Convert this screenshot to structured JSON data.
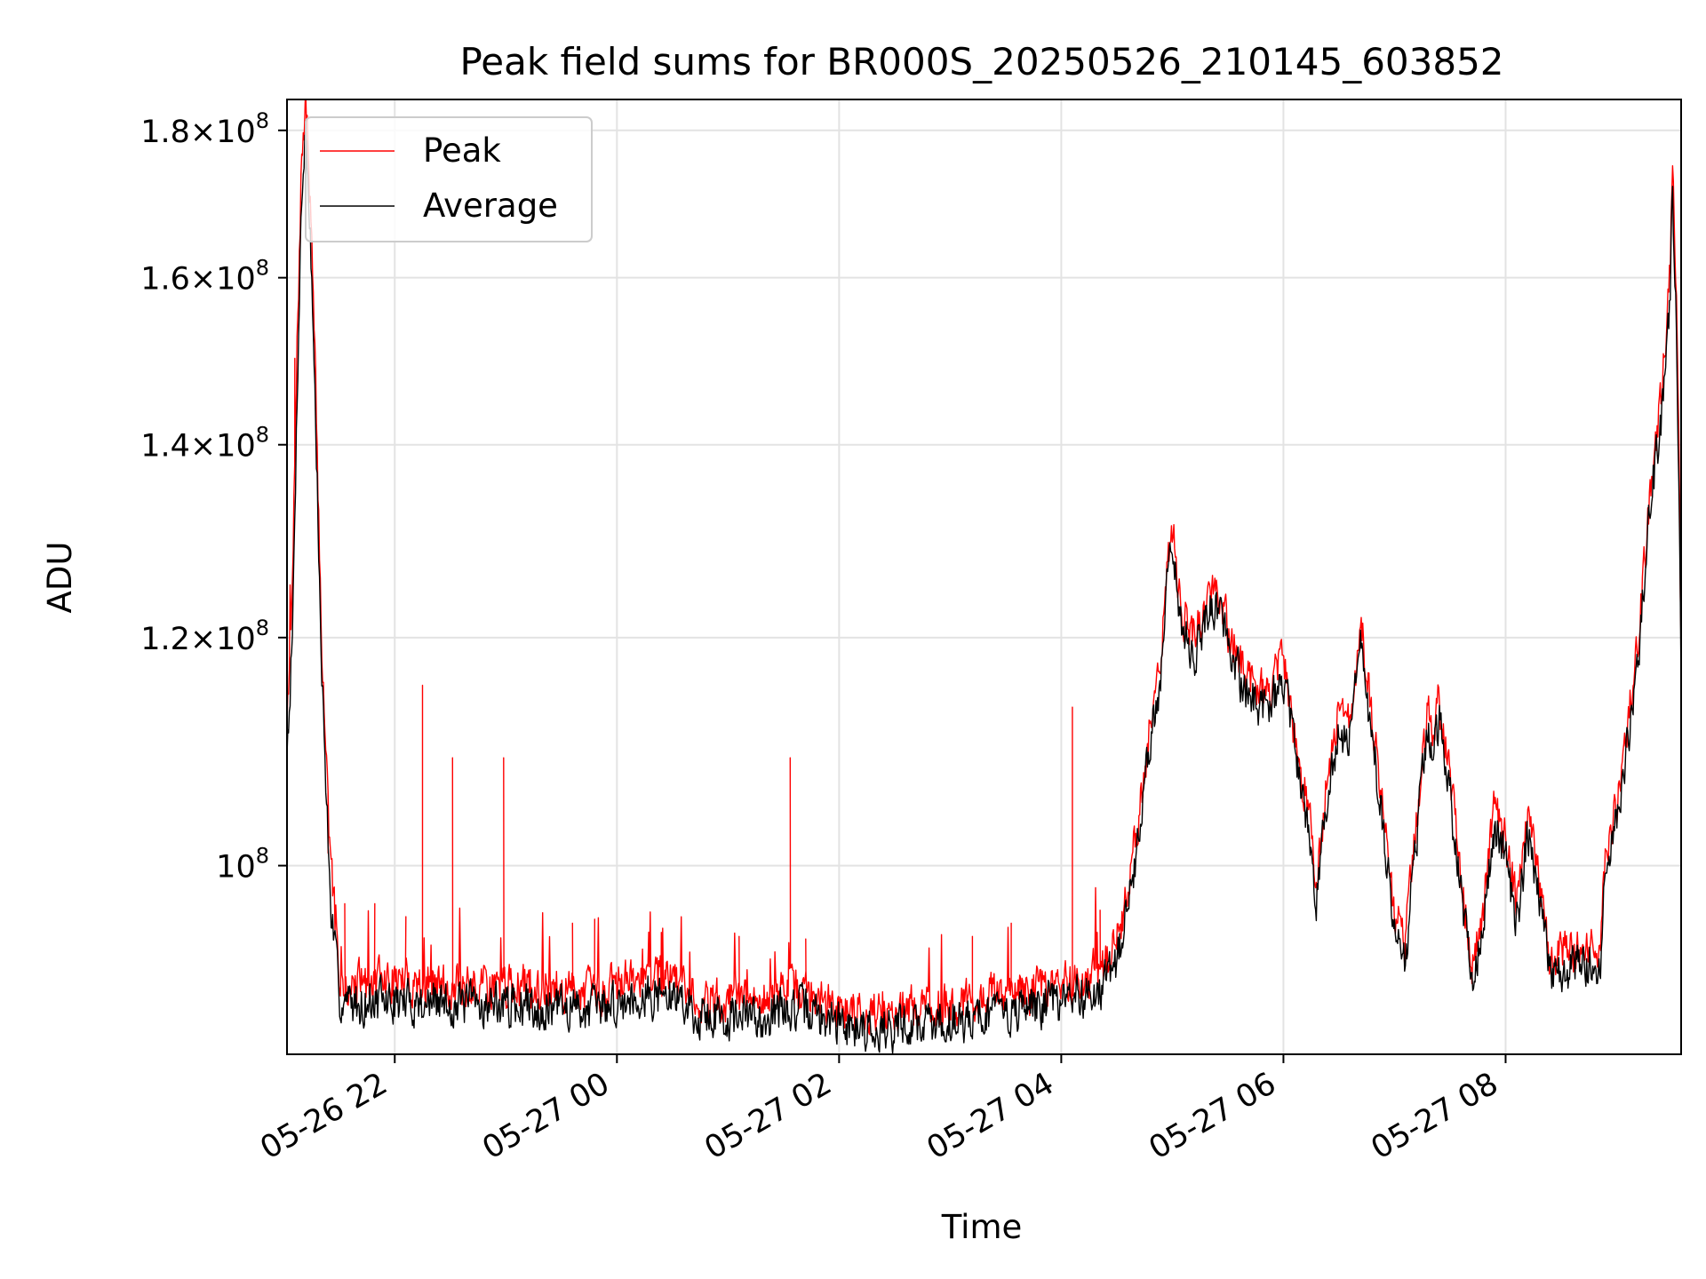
{
  "chart_data": {
    "type": "line",
    "title": "Peak field sums for BR000S_20250526_210145_603852",
    "xlabel": "Time",
    "ylabel": "ADU",
    "x_ticks": [
      {
        "label": "05-26 22",
        "hour": 22
      },
      {
        "label": "05-27 00",
        "hour": 24
      },
      {
        "label": "05-27 02",
        "hour": 26
      },
      {
        "label": "05-27 04",
        "hour": 28
      },
      {
        "label": "05-27 06",
        "hour": 30
      },
      {
        "label": "05-27 08",
        "hour": 32
      }
    ],
    "y_ticks": [
      {
        "mantissa": "",
        "exp": "8",
        "value": 100000000
      },
      {
        "mantissa": "1.2",
        "exp": "8",
        "value": 120000000
      },
      {
        "mantissa": "1.4",
        "exp": "8",
        "value": 140000000
      },
      {
        "mantissa": "1.6",
        "exp": "8",
        "value": 160000000
      },
      {
        "mantissa": "1.8",
        "exp": "8",
        "value": 180000000
      }
    ],
    "y_scale": "log",
    "xlim_hours": [
      21.03,
      33.58
    ],
    "ylim": [
      86000000,
      184500000
    ],
    "grid": true,
    "legend_position": "top-left",
    "series": [
      {
        "name": "Peak",
        "color": "#ff0000",
        "points": [
          [
            21.03,
            113000000
          ],
          [
            21.08,
            125000000
          ],
          [
            21.12,
            150000000
          ],
          [
            21.16,
            175000000
          ],
          [
            21.2,
            184000000
          ],
          [
            21.24,
            170000000
          ],
          [
            21.28,
            150000000
          ],
          [
            21.34,
            120000000
          ],
          [
            21.42,
            100000000
          ],
          [
            21.5,
            92000000
          ],
          [
            21.58,
            91000000
          ],
          [
            21.7,
            91000000
          ],
          [
            22.0,
            91200000
          ],
          [
            22.3,
            91000000
          ],
          [
            22.6,
            90800000
          ],
          [
            22.9,
            90900000
          ],
          [
            23.2,
            90800000
          ],
          [
            23.5,
            90600000
          ],
          [
            23.8,
            90500000
          ],
          [
            24.0,
            91000000
          ],
          [
            24.2,
            91800000
          ],
          [
            24.4,
            91600000
          ],
          [
            24.6,
            91300000
          ],
          [
            24.7,
            90000000
          ],
          [
            25.0,
            89800000
          ],
          [
            25.3,
            89700000
          ],
          [
            25.5,
            90500000
          ],
          [
            25.7,
            90400000
          ],
          [
            25.9,
            89400000
          ],
          [
            26.1,
            89200000
          ],
          [
            26.4,
            89000000
          ],
          [
            26.7,
            89300000
          ],
          [
            27.0,
            89500000
          ],
          [
            27.3,
            90000000
          ],
          [
            27.6,
            90300000
          ],
          [
            27.9,
            90800000
          ],
          [
            28.2,
            91400000
          ],
          [
            28.4,
            92300000
          ],
          [
            28.5,
            94000000
          ],
          [
            28.6,
            98000000
          ],
          [
            28.7,
            104000000
          ],
          [
            28.8,
            112000000
          ],
          [
            28.9,
            118000000
          ],
          [
            28.95,
            128000000
          ],
          [
            29.0,
            131000000
          ],
          [
            29.05,
            126000000
          ],
          [
            29.1,
            122000000
          ],
          [
            29.2,
            120000000
          ],
          [
            29.3,
            123000000
          ],
          [
            29.4,
            125000000
          ],
          [
            29.5,
            121000000
          ],
          [
            29.6,
            118000000
          ],
          [
            29.7,
            116000000
          ],
          [
            29.8,
            115000000
          ],
          [
            29.9,
            115500000
          ],
          [
            30.0,
            118000000
          ],
          [
            30.1,
            111000000
          ],
          [
            30.2,
            106000000
          ],
          [
            30.25,
            103000000
          ],
          [
            30.3,
            99000000
          ],
          [
            30.4,
            108000000
          ],
          [
            30.5,
            113000000
          ],
          [
            30.6,
            112000000
          ],
          [
            30.65,
            117000000
          ],
          [
            30.7,
            121000000
          ],
          [
            30.8,
            112000000
          ],
          [
            30.9,
            104000000
          ],
          [
            31.0,
            96000000
          ],
          [
            31.1,
            94000000
          ],
          [
            31.2,
            104000000
          ],
          [
            31.3,
            113000000
          ],
          [
            31.35,
            111000000
          ],
          [
            31.4,
            114000000
          ],
          [
            31.5,
            107000000
          ],
          [
            31.6,
            99000000
          ],
          [
            31.7,
            92000000
          ],
          [
            31.8,
            97000000
          ],
          [
            31.9,
            105000000
          ],
          [
            32.0,
            102000000
          ],
          [
            32.1,
            97000000
          ],
          [
            32.2,
            104000000
          ],
          [
            32.3,
            99000000
          ],
          [
            32.4,
            93000000
          ],
          [
            32.6,
            93500000
          ],
          [
            32.75,
            93800000
          ],
          [
            32.85,
            93000000
          ],
          [
            32.9,
            101000000
          ],
          [
            33.0,
            105000000
          ],
          [
            33.1,
            112000000
          ],
          [
            33.2,
            120000000
          ],
          [
            33.3,
            135000000
          ],
          [
            33.4,
            145000000
          ],
          [
            33.45,
            155000000
          ],
          [
            33.48,
            160000000
          ],
          [
            33.5,
            174000000
          ],
          [
            33.52,
            165000000
          ],
          [
            33.54,
            155000000
          ],
          [
            33.56,
            140000000
          ],
          [
            33.58,
            118000000
          ]
        ]
      },
      {
        "name": "Average",
        "color": "#000000",
        "points": [
          [
            21.03,
            110000000
          ],
          [
            21.08,
            120000000
          ],
          [
            21.12,
            145000000
          ],
          [
            21.16,
            170000000
          ],
          [
            21.2,
            180000000
          ],
          [
            21.24,
            166000000
          ],
          [
            21.28,
            146000000
          ],
          [
            21.34,
            117000000
          ],
          [
            21.42,
            97000000
          ],
          [
            21.5,
            90000000
          ],
          [
            21.58,
            89600000
          ],
          [
            21.7,
            89600000
          ],
          [
            22.0,
            89700000
          ],
          [
            22.3,
            89600000
          ],
          [
            22.6,
            89500000
          ],
          [
            22.9,
            89500000
          ],
          [
            23.2,
            89400000
          ],
          [
            23.5,
            89300000
          ],
          [
            23.8,
            89200000
          ],
          [
            24.0,
            89500000
          ],
          [
            24.2,
            90300000
          ],
          [
            24.4,
            90100000
          ],
          [
            24.6,
            89900000
          ],
          [
            24.7,
            88800000
          ],
          [
            25.0,
            88600000
          ],
          [
            25.3,
            88500000
          ],
          [
            25.5,
            89200000
          ],
          [
            25.7,
            89100000
          ],
          [
            25.9,
            88300000
          ],
          [
            26.1,
            88000000
          ],
          [
            26.4,
            87800000
          ],
          [
            26.7,
            88100000
          ],
          [
            27.0,
            88300000
          ],
          [
            27.3,
            88800000
          ],
          [
            27.6,
            89100000
          ],
          [
            27.9,
            89600000
          ],
          [
            28.2,
            90200000
          ],
          [
            28.4,
            91000000
          ],
          [
            28.5,
            92500000
          ],
          [
            28.6,
            96500000
          ],
          [
            28.7,
            102500000
          ],
          [
            28.8,
            110500000
          ],
          [
            28.9,
            116500000
          ],
          [
            28.95,
            126000000
          ],
          [
            29.0,
            129000000
          ],
          [
            29.05,
            124500000
          ],
          [
            29.1,
            120500000
          ],
          [
            29.2,
            118500000
          ],
          [
            29.3,
            121500000
          ],
          [
            29.4,
            123500000
          ],
          [
            29.5,
            119500000
          ],
          [
            29.6,
            116500000
          ],
          [
            29.7,
            114500000
          ],
          [
            29.8,
            113500000
          ],
          [
            29.9,
            114000000
          ],
          [
            30.0,
            116500000
          ],
          [
            30.1,
            109500000
          ],
          [
            30.2,
            104500000
          ],
          [
            30.25,
            101500000
          ],
          [
            30.3,
            97500000
          ],
          [
            30.4,
            106500000
          ],
          [
            30.5,
            111500000
          ],
          [
            30.6,
            110500000
          ],
          [
            30.65,
            115500000
          ],
          [
            30.7,
            119500000
          ],
          [
            30.8,
            110500000
          ],
          [
            30.9,
            102500000
          ],
          [
            31.0,
            94500000
          ],
          [
            31.1,
            92500000
          ],
          [
            31.2,
            102500000
          ],
          [
            31.3,
            111500000
          ],
          [
            31.35,
            109500000
          ],
          [
            31.4,
            112500000
          ],
          [
            31.5,
            105500000
          ],
          [
            31.6,
            97500000
          ],
          [
            31.7,
            90800000
          ],
          [
            31.8,
            95500000
          ],
          [
            31.9,
            103500000
          ],
          [
            32.0,
            100500000
          ],
          [
            32.1,
            95500000
          ],
          [
            32.2,
            102500000
          ],
          [
            32.3,
            97500000
          ],
          [
            32.4,
            91800000
          ],
          [
            32.6,
            92200000
          ],
          [
            32.75,
            92500000
          ],
          [
            32.85,
            91800000
          ],
          [
            32.9,
            99500000
          ],
          [
            33.0,
            103500000
          ],
          [
            33.1,
            110500000
          ],
          [
            33.2,
            118500000
          ],
          [
            33.3,
            133000000
          ],
          [
            33.4,
            143000000
          ],
          [
            33.45,
            152000000
          ],
          [
            33.48,
            157000000
          ],
          [
            33.5,
            170000000
          ],
          [
            33.52,
            162000000
          ],
          [
            33.54,
            152000000
          ],
          [
            33.56,
            137000000
          ],
          [
            33.58,
            115000000
          ]
        ]
      }
    ],
    "spikes": {
      "series": "Peak",
      "points": [
        [
          21.1,
          150000000
        ],
        [
          22.25,
          115500000
        ],
        [
          22.52,
          109000000
        ],
        [
          22.98,
          109000000
        ],
        [
          25.56,
          109000000
        ],
        [
          28.1,
          113500000
        ],
        [
          21.4,
          101000000
        ],
        [
          21.55,
          97000000
        ],
        [
          21.82,
          97000000
        ],
        [
          22.1,
          96000000
        ],
        [
          23.6,
          95500000
        ],
        [
          23.8,
          95800000
        ],
        [
          24.4,
          94800000
        ],
        [
          25.1,
          94500000
        ],
        [
          25.7,
          94300000
        ],
        [
          27.55,
          95500000
        ],
        [
          27.2,
          94500000
        ],
        [
          28.35,
          96500000
        ]
      ]
    }
  }
}
